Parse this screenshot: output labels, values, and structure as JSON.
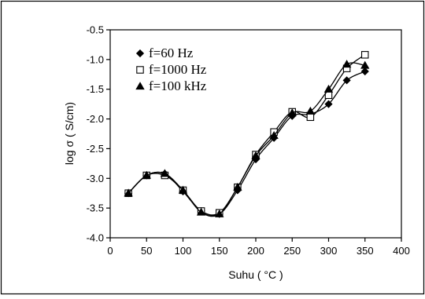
{
  "chart_data": {
    "type": "line",
    "xlabel": "Suhu ( °C )",
    "ylabel": "log σ ( S/cm)",
    "xlim": [
      0,
      400
    ],
    "ylim": [
      -4.0,
      -0.5
    ],
    "xticks": [
      "0",
      "50",
      "100",
      "150",
      "200",
      "250",
      "300",
      "350",
      "400"
    ],
    "yticks": [
      "-0.5",
      "-1.0",
      "-1.5",
      "-2.0",
      "-2.5",
      "-3.0",
      "-3.5",
      "-4.0"
    ],
    "grid": false,
    "legend_position": "top-left",
    "series": [
      {
        "name": "f=60 Hz",
        "marker": "diamond",
        "x": [
          25,
          50,
          75,
          100,
          125,
          150,
          175,
          200,
          225,
          250,
          275,
          300,
          325,
          350
        ],
        "y": [
          -3.25,
          -2.95,
          -2.92,
          -3.22,
          -3.55,
          -3.6,
          -3.2,
          -2.68,
          -2.32,
          -1.95,
          -1.92,
          -1.75,
          -1.35,
          -1.2
        ]
      },
      {
        "name": "f=1000 Hz",
        "marker": "square",
        "x": [
          25,
          50,
          75,
          100,
          125,
          150,
          175,
          200,
          225,
          250,
          275,
          300,
          325,
          350
        ],
        "y": [
          -3.25,
          -2.95,
          -2.95,
          -3.2,
          -3.55,
          -3.58,
          -3.15,
          -2.6,
          -2.22,
          -1.88,
          -1.97,
          -1.6,
          -1.15,
          -0.92
        ]
      },
      {
        "name": "f=100 kHz",
        "marker": "triangle",
        "x": [
          25,
          50,
          75,
          100,
          125,
          150,
          175,
          200,
          225,
          250,
          275,
          300,
          325,
          350
        ],
        "y": [
          -3.25,
          -2.95,
          -2.92,
          -3.2,
          -3.57,
          -3.6,
          -3.15,
          -2.62,
          -2.28,
          -1.9,
          -1.87,
          -1.5,
          -1.08,
          -1.1
        ]
      }
    ]
  }
}
